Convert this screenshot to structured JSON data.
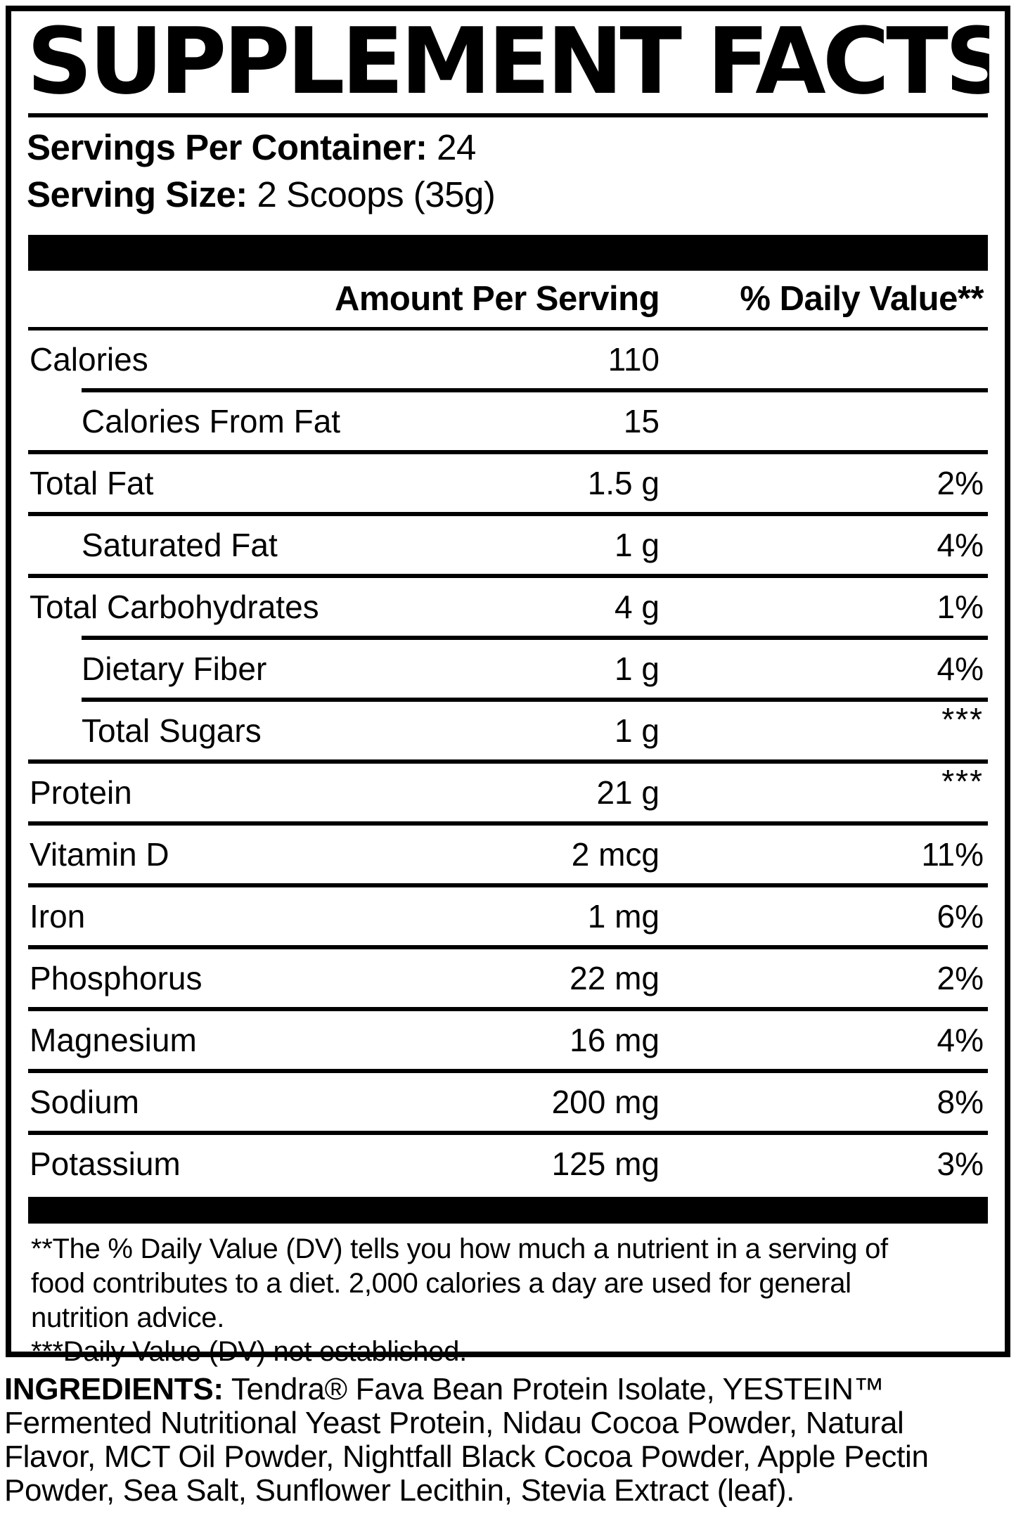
{
  "title": "SUPPLEMENT FACTS",
  "serving_info": {
    "servings_per_container_label": "Servings Per Container:",
    "servings_per_container_value": "24",
    "serving_size_label": "Serving Size:",
    "serving_size_value": "2 Scoops (35g)"
  },
  "table": {
    "header": {
      "amount": "Amount Per Serving",
      "daily_value": "% Daily Value**"
    },
    "rows": [
      {
        "label": "Calories",
        "amount": "110",
        "dv": "",
        "indent": false,
        "divider_indent": false
      },
      {
        "label": "Calories From Fat",
        "amount": "15",
        "dv": "",
        "indent": true,
        "divider_indent": true
      },
      {
        "label": "Total Fat",
        "amount": "1.5 g",
        "dv": "2%",
        "indent": false,
        "divider_indent": false
      },
      {
        "label": "Saturated Fat",
        "amount": "1 g",
        "dv": "4%",
        "indent": true,
        "divider_indent": false
      },
      {
        "label": "Total Carbohydrates",
        "amount": "4 g",
        "dv": "1%",
        "indent": false,
        "divider_indent": false
      },
      {
        "label": "Dietary Fiber",
        "amount": "1 g",
        "dv": "4%",
        "indent": true,
        "divider_indent": true
      },
      {
        "label": "Total Sugars",
        "amount": "1 g",
        "dv": "***",
        "indent": true,
        "divider_indent": true
      },
      {
        "label": "Protein",
        "amount": "21 g",
        "dv": "***",
        "indent": false,
        "divider_indent": false
      },
      {
        "label": "Vitamin D",
        "amount": "2 mcg",
        "dv": "11%",
        "indent": false,
        "divider_indent": false
      },
      {
        "label": "Iron",
        "amount": "1 mg",
        "dv": "6%",
        "indent": false,
        "divider_indent": false
      },
      {
        "label": "Phosphorus",
        "amount": "22 mg",
        "dv": "2%",
        "indent": false,
        "divider_indent": false
      },
      {
        "label": "Magnesium",
        "amount": "16 mg",
        "dv": "4%",
        "indent": false,
        "divider_indent": false
      },
      {
        "label": "Sodium",
        "amount": "200 mg",
        "dv": "8%",
        "indent": false,
        "divider_indent": false
      },
      {
        "label": "Potassium",
        "amount": "125 mg",
        "dv": "3%",
        "indent": false,
        "divider_indent": false
      }
    ]
  },
  "footnotes": {
    "dv_lines": [
      "**The % Daily Value (DV) tells you how much a nutrient in a serving of",
      "food contributes to a diet. 2,000 calories a day are used for general",
      "nutrition advice."
    ],
    "not_established": "***Daily Value (DV) not established."
  },
  "ingredients": {
    "label": "INGREDIENTS:",
    "line1_rest": "Tendra® Fava Bean Protein Isolate, YESTEIN™",
    "lines": [
      "Fermented Nutritional Yeast Protein, Nidau Cocoa Powder, Natural",
      "Flavor, MCT Oil Powder, Nightfall Black Cocoa Powder, Apple Pectin",
      "Powder, Sea Salt, Sunflower Lecithin, Stevia Extract (leaf)."
    ]
  },
  "colors": {
    "text": "#000000",
    "background": "#ffffff"
  }
}
